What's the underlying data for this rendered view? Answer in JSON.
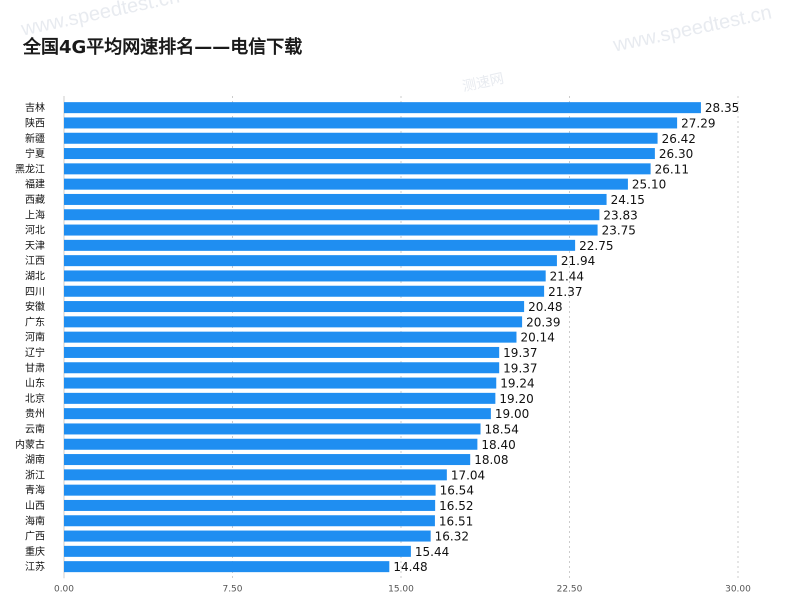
{
  "title": "全国4G平均网速排名——电信下载",
  "watermarks": [
    "www.speedtest.cn",
    "www.speedtest.cn",
    "测速网"
  ],
  "colors": {
    "bar": "#1f8ef1",
    "grid": "#cccccc",
    "tick": "#555555",
    "label": "#111111"
  },
  "chart_data": {
    "type": "bar",
    "orientation": "horizontal",
    "title": "全国4G平均网速排名——电信下载",
    "categories": [
      "吉林",
      "陕西",
      "新疆",
      "宁夏",
      "黑龙江",
      "福建",
      "西藏",
      "上海",
      "河北",
      "天津",
      "江西",
      "湖北",
      "四川",
      "安徽",
      "广东",
      "河南",
      "辽宁",
      "甘肃",
      "山东",
      "北京",
      "贵州",
      "云南",
      "内蒙古",
      "湖南",
      "浙江",
      "青海",
      "山西",
      "海南",
      "广西",
      "重庆",
      "江苏"
    ],
    "values": [
      28.35,
      27.29,
      26.42,
      26.3,
      26.11,
      25.1,
      24.15,
      23.83,
      23.75,
      22.75,
      21.94,
      21.44,
      21.37,
      20.48,
      20.39,
      20.14,
      19.37,
      19.37,
      19.24,
      19.2,
      19.0,
      18.54,
      18.4,
      18.08,
      17.04,
      16.54,
      16.52,
      16.51,
      16.32,
      15.44,
      14.48
    ],
    "value_labels": [
      "28.35",
      "27.29",
      "26.42",
      "26.30",
      "26.11",
      "25.10",
      "24.15",
      "23.83",
      "23.75",
      "22.75",
      "21.94",
      "21.44",
      "21.37",
      "20.48",
      "20.39",
      "20.14",
      "19.37",
      "19.37",
      "19.24",
      "19.20",
      "19.00",
      "18.54",
      "18.40",
      "18.08",
      "17.04",
      "16.54",
      "16.52",
      "16.51",
      "16.32",
      "15.44",
      "14.48"
    ],
    "xlim": [
      0,
      30
    ],
    "x_ticks": [
      0,
      7.5,
      15,
      22.5,
      30
    ],
    "x_tick_labels": [
      "0.00",
      "7.50",
      "15.00",
      "22.50",
      "30.00"
    ],
    "grid": "vertical dashed",
    "legend": "none"
  }
}
